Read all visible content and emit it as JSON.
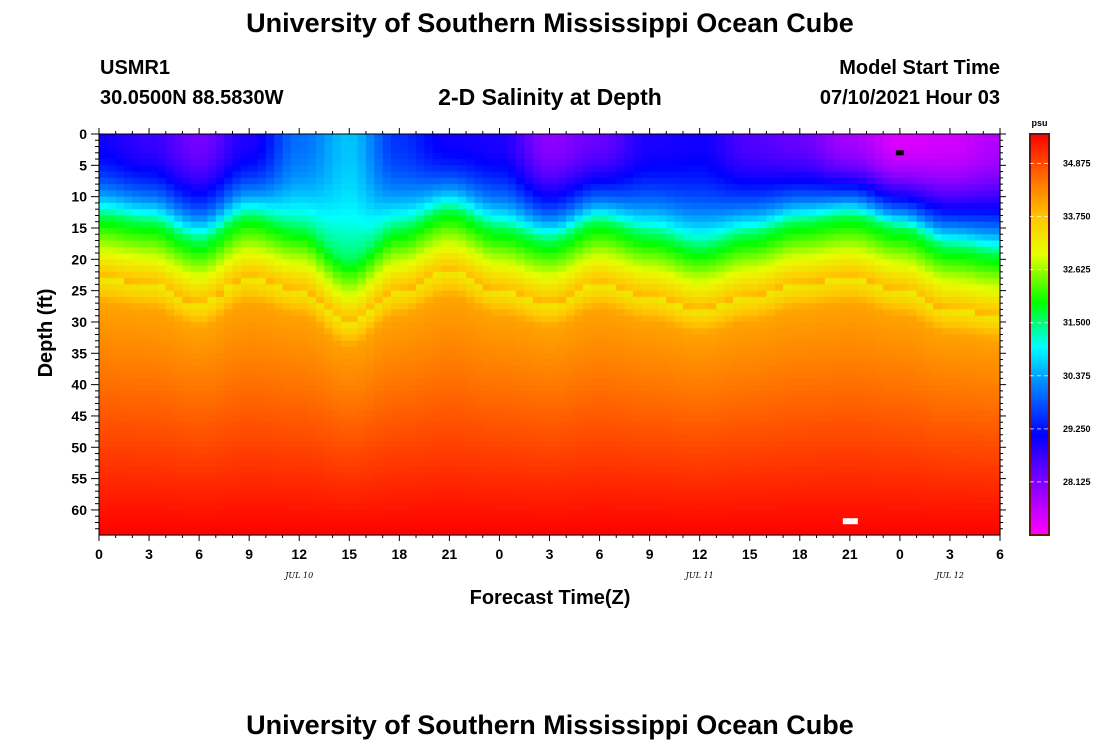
{
  "header": {
    "title": "University of Southern Mississippi Ocean Cube",
    "station": "USMR1",
    "coords": "30.0500N  88.5830W",
    "plot_title": "2-D Salinity at Depth",
    "model_start_label": "Model Start Time",
    "model_start_value": "07/10/2021 Hour 03"
  },
  "footer": {
    "title": "University of Southern Mississippi Ocean Cube"
  },
  "chart_data": {
    "type": "heatmap",
    "title": "2-D Salinity at Depth",
    "xlabel": "Forecast Time(Z)",
    "ylabel": "Depth (ft)",
    "x_tick_labels": [
      "0",
      "3",
      "6",
      "9",
      "12",
      "15",
      "18",
      "21",
      "0",
      "3",
      "6",
      "9",
      "12",
      "15",
      "18",
      "21",
      "0",
      "3",
      "6"
    ],
    "x_range_hours": [
      0,
      54
    ],
    "date_labels": [
      {
        "text": "JUL 10",
        "hour": 12
      },
      {
        "text": "JUL 11",
        "hour": 36
      },
      {
        "text": "JUL 12",
        "hour": 51
      }
    ],
    "y_tick_labels": [
      "0",
      "5",
      "10",
      "15",
      "20",
      "25",
      "30",
      "35",
      "40",
      "45",
      "50",
      "55",
      "60"
    ],
    "y_range_ft": [
      0,
      64
    ],
    "colorbar": {
      "unit": "psu",
      "range": [
        27.0,
        35.5
      ],
      "ticks": [
        "34.875",
        "33.750",
        "32.625",
        "31.500",
        "30.375",
        "29.250",
        "28.125"
      ],
      "tick_values": [
        34.875,
        33.75,
        32.625,
        31.5,
        30.375,
        29.25,
        28.125
      ]
    },
    "surface_salinity_by_hour": [
      {
        "hour": 0,
        "psu": 29.0
      },
      {
        "hour": 3,
        "psu": 28.7
      },
      {
        "hour": 6,
        "psu": 28.2
      },
      {
        "hour": 9,
        "psu": 28.9
      },
      {
        "hour": 12,
        "psu": 30.0
      },
      {
        "hour": 15,
        "psu": 30.6
      },
      {
        "hour": 18,
        "psu": 29.5
      },
      {
        "hour": 21,
        "psu": 29.0
      },
      {
        "hour": 24,
        "psu": 28.9
      },
      {
        "hour": 27,
        "psu": 28.0
      },
      {
        "hour": 30,
        "psu": 28.3
      },
      {
        "hour": 33,
        "psu": 28.9
      },
      {
        "hour": 36,
        "psu": 29.0
      },
      {
        "hour": 39,
        "psu": 28.5
      },
      {
        "hour": 42,
        "psu": 28.3
      },
      {
        "hour": 45,
        "psu": 27.8
      },
      {
        "hour": 48,
        "psu": 27.3
      },
      {
        "hour": 51,
        "psu": 27.4
      },
      {
        "hour": 54,
        "psu": 27.7
      }
    ],
    "halocline_depth_ft_by_hour": [
      {
        "hour": 0,
        "ft": 13
      },
      {
        "hour": 3,
        "ft": 14
      },
      {
        "hour": 6,
        "ft": 17
      },
      {
        "hour": 9,
        "ft": 13
      },
      {
        "hour": 12,
        "ft": 15
      },
      {
        "hour": 15,
        "ft": 20
      },
      {
        "hour": 18,
        "ft": 15
      },
      {
        "hour": 21,
        "ft": 12
      },
      {
        "hour": 24,
        "ft": 15
      },
      {
        "hour": 27,
        "ft": 17
      },
      {
        "hour": 30,
        "ft": 14
      },
      {
        "hour": 33,
        "ft": 16
      },
      {
        "hour": 36,
        "ft": 18
      },
      {
        "hour": 39,
        "ft": 16
      },
      {
        "hour": 42,
        "ft": 14
      },
      {
        "hour": 45,
        "ft": 13
      },
      {
        "hour": 48,
        "ft": 15
      },
      {
        "hour": 51,
        "ft": 18
      },
      {
        "hour": 54,
        "ft": 19
      }
    ],
    "bottom_salinity_psu": 35.5
  },
  "colors": {
    "frame": "#000000",
    "colorbar_border": "#6b1010"
  }
}
